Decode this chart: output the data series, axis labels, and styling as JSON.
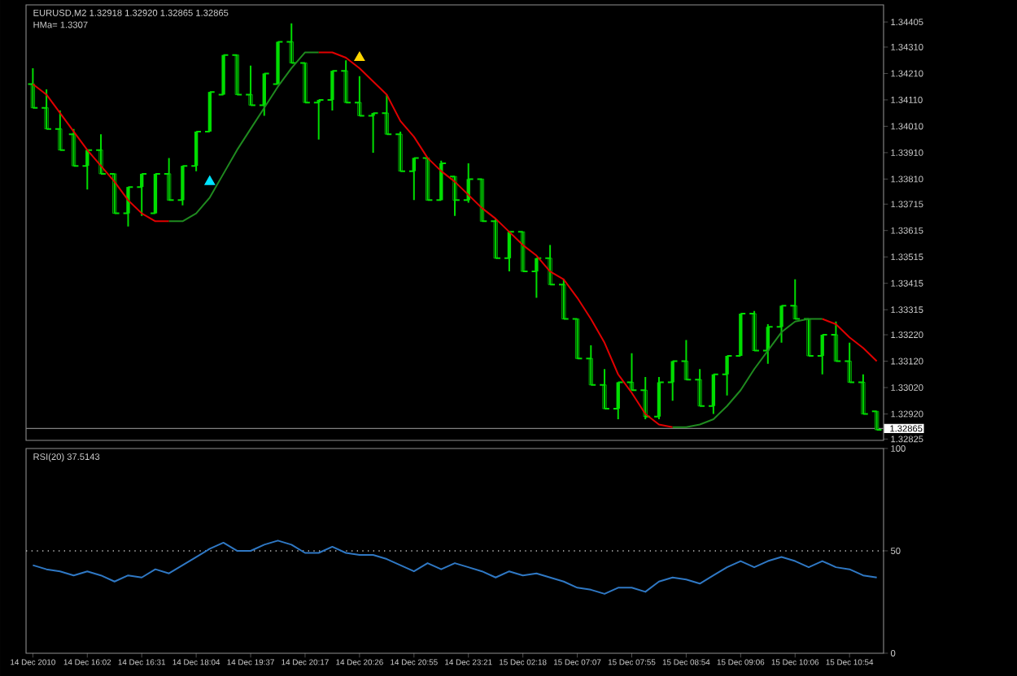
{
  "chart_data": [
    {
      "type": "candlestick",
      "title": "EURUSD,M2 1.32918 1.32920 1.32865 1.32865",
      "subtitle": "HMa= 1.3307",
      "color": "#00dd00",
      "categories": [
        null,
        null,
        null,
        null,
        null,
        null,
        null,
        null,
        null,
        null,
        null,
        null,
        null,
        null,
        null,
        null,
        null,
        null,
        null,
        null,
        null,
        null,
        null,
        null,
        null,
        null,
        null,
        null,
        null,
        null,
        null,
        null,
        null,
        null,
        null,
        null,
        null,
        null,
        null,
        null,
        null,
        null,
        null,
        null,
        null,
        null,
        null,
        null,
        null,
        null,
        null,
        null,
        null,
        null,
        null,
        null,
        null,
        null,
        null,
        null,
        null,
        null,
        null
      ],
      "ohlc": [
        [
          1.3417,
          1.3423,
          1.3408,
          1.3408
        ],
        [
          1.3408,
          1.3415,
          1.34,
          1.34
        ],
        [
          1.34,
          1.3407,
          1.3392,
          1.3392
        ],
        [
          1.3398,
          1.34,
          1.3386,
          1.3386
        ],
        [
          1.3386,
          1.3392,
          1.3377,
          1.3392
        ],
        [
          1.3392,
          1.3398,
          1.3383,
          1.3383
        ],
        [
          1.3383,
          1.3383,
          1.3368,
          1.3368
        ],
        [
          1.3368,
          1.3378,
          1.3363,
          1.3378
        ],
        [
          1.3378,
          1.3383,
          1.3367,
          1.3383
        ],
        [
          1.3368,
          1.3383,
          1.3368,
          1.3383
        ],
        [
          1.3383,
          1.3389,
          1.3373,
          1.3373
        ],
        [
          1.3373,
          1.3386,
          1.3371,
          1.3386
        ],
        [
          1.3386,
          1.3399,
          1.3384,
          1.3399
        ],
        [
          1.3399,
          1.3414,
          1.3399,
          1.3414
        ],
        [
          1.3413,
          1.3428,
          1.3413,
          1.3428
        ],
        [
          1.3428,
          1.3428,
          1.3413,
          1.3413
        ],
        [
          1.3413,
          1.3424,
          1.3409,
          1.3409
        ],
        [
          1.3409,
          1.3421,
          1.3405,
          1.3421
        ],
        [
          1.3417,
          1.3433,
          1.3417,
          1.3433
        ],
        [
          1.3433,
          1.344,
          1.3425,
          1.3425
        ],
        [
          1.3425,
          1.3425,
          1.341,
          1.341
        ],
        [
          1.341,
          1.3411,
          1.3396,
          1.3411
        ],
        [
          1.3411,
          1.3422,
          1.3407,
          1.3422
        ],
        [
          1.3422,
          1.3426,
          1.341,
          1.341
        ],
        [
          1.341,
          1.342,
          1.3405,
          1.3405
        ],
        [
          1.3405,
          1.3406,
          1.3391,
          1.3406
        ],
        [
          1.3406,
          1.3413,
          1.3398,
          1.3398
        ],
        [
          1.3398,
          1.3399,
          1.3384,
          1.3384
        ],
        [
          1.3384,
          1.3389,
          1.3373,
          1.3389
        ],
        [
          1.3389,
          1.3389,
          1.3373,
          1.3373
        ],
        [
          1.3373,
          1.3388,
          1.3373,
          1.3387
        ],
        [
          1.3382,
          1.3382,
          1.3367,
          1.3373
        ],
        [
          1.3373,
          1.3387,
          1.3372,
          1.3381
        ],
        [
          1.3381,
          1.3381,
          1.3365,
          1.3365
        ],
        [
          1.3365,
          1.3366,
          1.3351,
          1.3351
        ],
        [
          1.3351,
          1.3361,
          1.3346,
          1.3361
        ],
        [
          1.3361,
          1.3361,
          1.3346,
          1.3346
        ],
        [
          1.3346,
          1.3351,
          1.3336,
          1.3351
        ],
        [
          1.3351,
          1.3356,
          1.3341,
          1.3341
        ],
        [
          1.3341,
          1.3343,
          1.3328,
          1.3328
        ],
        [
          1.3328,
          1.3328,
          1.3313,
          1.3313
        ],
        [
          1.3313,
          1.3318,
          1.3303,
          1.3303
        ],
        [
          1.3303,
          1.3309,
          1.3294,
          1.3294
        ],
        [
          1.3294,
          1.3304,
          1.329,
          1.3304
        ],
        [
          1.3304,
          1.3315,
          1.3301,
          1.3301
        ],
        [
          1.3301,
          1.3306,
          1.329,
          1.3291
        ],
        [
          1.3291,
          1.3306,
          1.329,
          1.3304
        ],
        [
          1.3304,
          1.3312,
          1.3297,
          1.3312
        ],
        [
          1.3312,
          1.332,
          1.3305,
          1.3305
        ],
        [
          1.3305,
          1.3309,
          1.3295,
          1.3295
        ],
        [
          1.3295,
          1.3307,
          1.3292,
          1.3307
        ],
        [
          1.3307,
          1.3314,
          1.3299,
          1.3314
        ],
        [
          1.3314,
          1.333,
          1.3314,
          1.333
        ],
        [
          1.333,
          1.3331,
          1.3316,
          1.3316
        ],
        [
          1.3316,
          1.3326,
          1.3311,
          1.3325
        ],
        [
          1.3325,
          1.3333,
          1.3319,
          1.3333
        ],
        [
          1.3333,
          1.3343,
          1.3328,
          1.3328
        ],
        [
          1.3328,
          1.3328,
          1.3314,
          1.3314
        ],
        [
          1.3314,
          1.3322,
          1.3307,
          1.3322
        ],
        [
          1.3322,
          1.3327,
          1.3312,
          1.3312
        ],
        [
          1.3312,
          1.3319,
          1.3304,
          1.3304
        ],
        [
          1.3304,
          1.3307,
          1.3292,
          1.3292
        ],
        [
          1.3293,
          1.3293,
          1.3286,
          1.3286
        ]
      ],
      "series": [
        {
          "type": "line",
          "color": "#e00000",
          "values": [
            1.3417,
            1.3413,
            1.3406,
            1.3399,
            1.3392,
            1.3386,
            1.338,
            1.3373,
            1.3368,
            1.3365,
            1.3365,
            null,
            null,
            null,
            null,
            null,
            null,
            null,
            null,
            null,
            null,
            1.3429,
            1.3429,
            1.3427,
            1.3423,
            1.3418,
            1.3413,
            1.3403,
            1.3397,
            1.3389,
            1.3384,
            1.338,
            1.3375,
            1.337,
            1.3366,
            1.3361,
            1.3356,
            1.3352,
            1.3346,
            1.3343,
            1.3336,
            1.3328,
            1.3319,
            1.3307,
            1.33,
            1.3292,
            1.3288,
            1.3287,
            null,
            null,
            null,
            null,
            null,
            null,
            null,
            null,
            null,
            null,
            1.3328,
            1.3326,
            1.3321,
            1.3317,
            1.3312
          ]
        },
        {
          "type": "line",
          "color": "#1f8a1f",
          "values": [
            null,
            null,
            null,
            null,
            null,
            null,
            null,
            null,
            null,
            null,
            1.3365,
            1.3365,
            1.3368,
            1.3374,
            1.3383,
            1.3392,
            1.34,
            1.3408,
            1.3416,
            1.3423,
            1.3429,
            1.3429,
            null,
            null,
            null,
            null,
            null,
            null,
            null,
            null,
            null,
            null,
            null,
            null,
            null,
            null,
            null,
            null,
            null,
            null,
            null,
            null,
            null,
            null,
            null,
            null,
            null,
            1.3287,
            1.3287,
            1.3288,
            1.329,
            1.3295,
            1.3301,
            1.3309,
            1.3316,
            1.3323,
            1.3327,
            1.3328,
            1.3328,
            null,
            null,
            null,
            null
          ]
        },
        {
          "type": "scatter",
          "color": "#00e5ff",
          "marker": "triangle",
          "values": [
            null,
            null,
            null,
            null,
            null,
            null,
            null,
            null,
            null,
            null,
            null,
            null,
            null,
            1.338,
            null,
            null,
            null,
            null,
            null,
            null,
            null,
            null,
            null,
            null,
            null,
            null,
            null,
            null,
            null,
            null,
            null,
            null,
            null,
            null,
            null,
            null,
            null,
            null,
            null,
            null,
            null,
            null,
            null,
            null,
            null,
            null,
            null,
            null,
            null,
            null,
            null,
            null,
            null,
            null,
            null,
            null,
            null,
            null,
            null,
            null,
            null,
            null,
            null
          ]
        },
        {
          "type": "scatter",
          "color": "#ffd700",
          "marker": "triangle",
          "values": [
            null,
            null,
            null,
            null,
            null,
            null,
            null,
            null,
            null,
            null,
            null,
            null,
            null,
            null,
            null,
            null,
            null,
            null,
            null,
            null,
            null,
            null,
            null,
            null,
            1.3427,
            null,
            null,
            null,
            null,
            null,
            null,
            null,
            null,
            null,
            null,
            null,
            null,
            null,
            null,
            null,
            null,
            null,
            null,
            null,
            null,
            null,
            null,
            null,
            null,
            null,
            null,
            null,
            null,
            null,
            null,
            null,
            null,
            null,
            null,
            null,
            null,
            null,
            null
          ]
        }
      ],
      "ylim": [
        1.3282,
        1.3447
      ],
      "yticks": [
        1.34405,
        {
          "value": 1.3431,
          "label": "1.34310"
        },
        {
          "value": 1.3421,
          "label": "1.34210"
        },
        {
          "value": 1.3411,
          "label": "1.34110"
        },
        {
          "value": 1.3401,
          "label": "1.34010"
        },
        {
          "value": 1.3391,
          "label": "1.33910"
        },
        {
          "value": 1.3381,
          "label": "1.33810"
        },
        1.33715,
        1.33615,
        1.33515,
        1.33415,
        1.33315,
        {
          "value": 1.3322,
          "label": "1.33220"
        },
        {
          "value": 1.3312,
          "label": "1.33120"
        },
        {
          "value": 1.3302,
          "label": "1.33020"
        },
        {
          "value": 1.3292,
          "label": "1.32920"
        },
        1.32825
      ],
      "ref_lines": [
        {
          "axis": "y",
          "value": 1.32865,
          "label": "1.32865",
          "color": "#808080"
        }
      ],
      "tick_labels": "y"
    },
    {
      "type": "line",
      "title": "RSI(20) 37.5143",
      "color": "#2f78c4",
      "categories": [
        "14 Dec 2010",
        null,
        null,
        null,
        "14 Dec 16:02",
        null,
        null,
        null,
        "14 Dec 16:31",
        null,
        null,
        null,
        "14 Dec 18:04",
        null,
        null,
        null,
        "14 Dec 19:37",
        null,
        null,
        null,
        "14 Dec 20:17",
        null,
        null,
        null,
        "14 Dec 20:26",
        null,
        null,
        null,
        "14 Dec 20:55",
        null,
        null,
        null,
        "14 Dec 23:21",
        null,
        null,
        null,
        "15 Dec 02:18",
        null,
        null,
        null,
        "15 Dec 07:07",
        null,
        null,
        null,
        "15 Dec 07:55",
        null,
        null,
        null,
        "15 Dec 08:54",
        null,
        null,
        null,
        "15 Dec 09:06",
        null,
        null,
        null,
        "15 Dec 10:06",
        null,
        null,
        null,
        "15 Dec 10:54",
        null,
        null
      ],
      "values": [
        43,
        41,
        40,
        38,
        40,
        38,
        35,
        38,
        37,
        41,
        39,
        43,
        47,
        51,
        54,
        50,
        50,
        53,
        55,
        53,
        49,
        49,
        52,
        49,
        48,
        48,
        46,
        43,
        40,
        44,
        41,
        44,
        42,
        40,
        37,
        40,
        38,
        39,
        37,
        35,
        32,
        31,
        29,
        32,
        32,
        30,
        35,
        37,
        36,
        34,
        38,
        42,
        45,
        42,
        45,
        47,
        45,
        42,
        45,
        42,
        41,
        38,
        37
      ],
      "ylim": [
        0,
        100
      ],
      "yticks": [
        0,
        50,
        100
      ],
      "ref_lines": [
        {
          "axis": "y",
          "value": 50,
          "color": "#c0c0c0",
          "line_style": "dotted"
        }
      ]
    }
  ]
}
